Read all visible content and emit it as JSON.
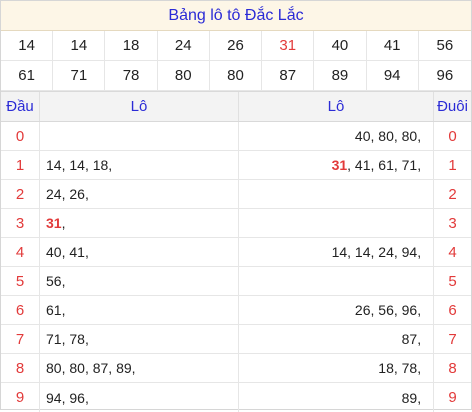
{
  "title": "Bảng lô tô Đắc Lắc",
  "numbers": [
    "14",
    "14",
    "18",
    "24",
    "26",
    "31",
    "40",
    "41",
    "56",
    "61",
    "71",
    "78",
    "80",
    "80",
    "87",
    "89",
    "94",
    "96"
  ],
  "highlight_number": "31",
  "colors": {
    "title": "#2b2bd6",
    "highlight": "#e23a3a",
    "header_bg": "#f3f3f3",
    "title_bg": "#fdf6e7"
  },
  "headers": {
    "dau": "Đầu",
    "lo_left": "Lô",
    "lo_right": "Lô",
    "duoi": "Đuôi"
  },
  "rows": [
    {
      "dau": "0",
      "left": [],
      "right": [
        "40",
        "80",
        "80"
      ],
      "duoi": "0"
    },
    {
      "dau": "1",
      "left": [
        "14",
        "14",
        "18"
      ],
      "right": [
        "31",
        "41",
        "61",
        "71"
      ],
      "duoi": "1"
    },
    {
      "dau": "2",
      "left": [
        "24",
        "26"
      ],
      "right": [],
      "duoi": "2"
    },
    {
      "dau": "3",
      "left": [
        "31"
      ],
      "right": [],
      "duoi": "3"
    },
    {
      "dau": "4",
      "left": [
        "40",
        "41"
      ],
      "right": [
        "14",
        "14",
        "24",
        "94"
      ],
      "duoi": "4"
    },
    {
      "dau": "5",
      "left": [
        "56"
      ],
      "right": [],
      "duoi": "5"
    },
    {
      "dau": "6",
      "left": [
        "61"
      ],
      "right": [
        "26",
        "56",
        "96"
      ],
      "duoi": "6"
    },
    {
      "dau": "7",
      "left": [
        "71",
        "78"
      ],
      "right": [
        "87"
      ],
      "duoi": "7"
    },
    {
      "dau": "8",
      "left": [
        "80",
        "80",
        "87",
        "89"
      ],
      "right": [
        "18",
        "78"
      ],
      "duoi": "8"
    },
    {
      "dau": "9",
      "left": [
        "94",
        "96"
      ],
      "right": [
        "89"
      ],
      "duoi": "9"
    }
  ]
}
